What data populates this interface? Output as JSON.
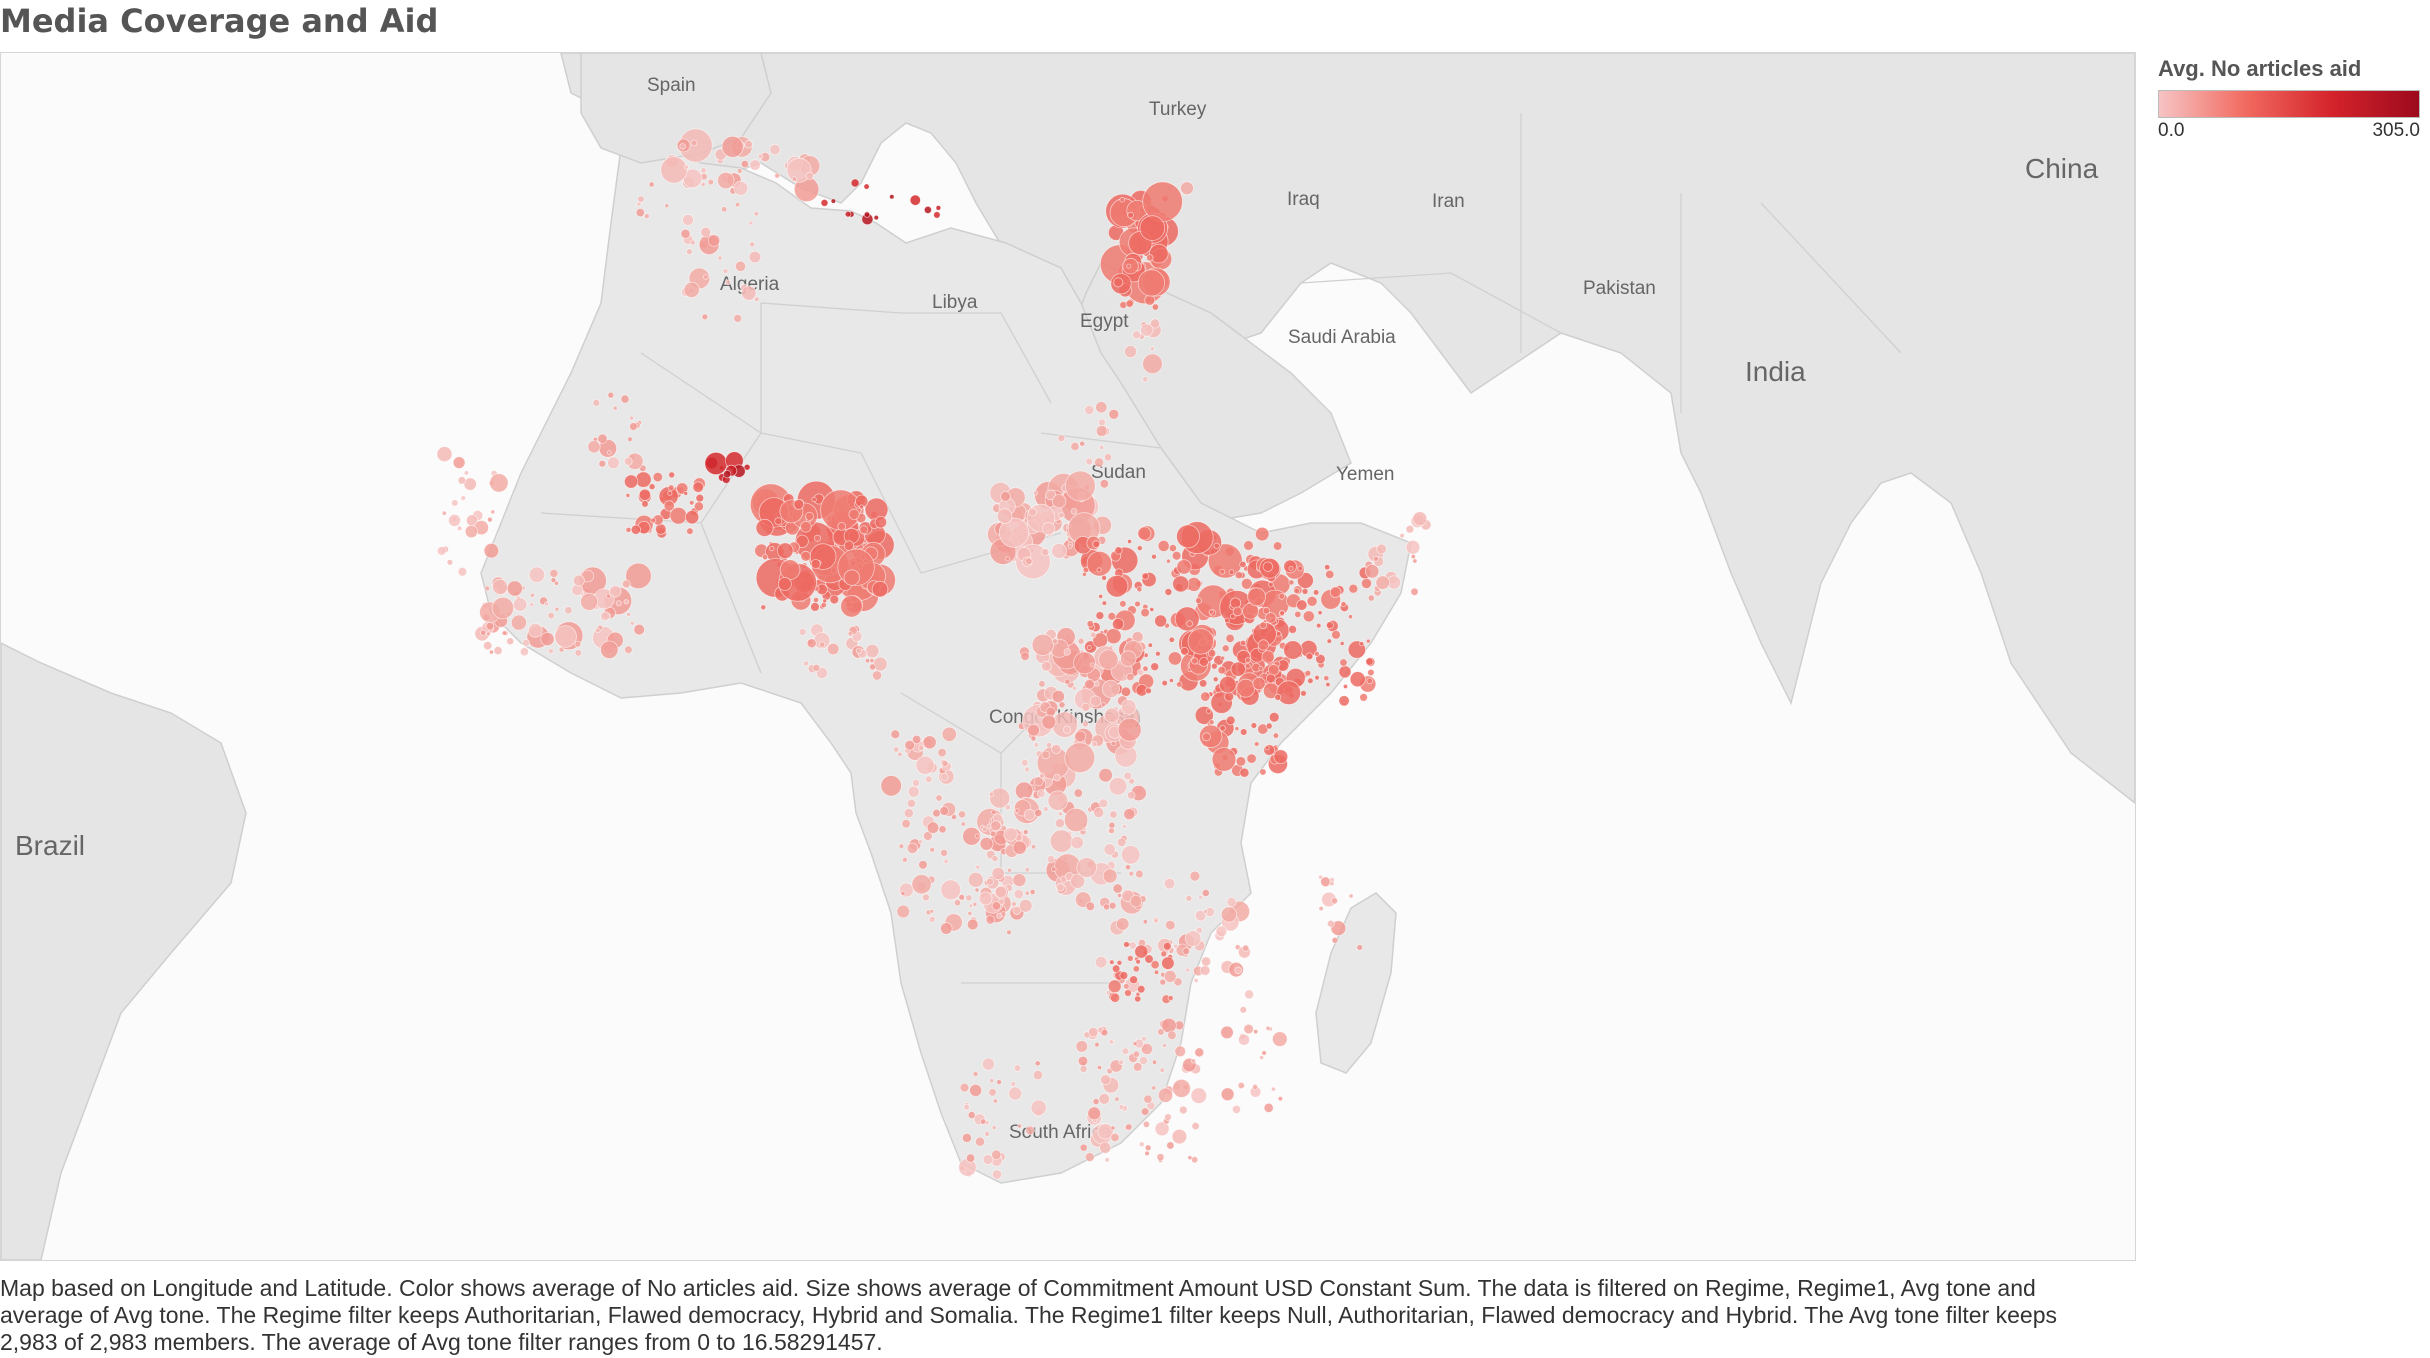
{
  "title": "Media Coverage and Aid",
  "legend": {
    "title": "Avg. No articles aid",
    "min": "0.0",
    "max": "305.0",
    "colors": [
      "#f6c4c4",
      "#f16a60",
      "#d4232b",
      "#9d0a1d"
    ]
  },
  "map": {
    "countries": {
      "spain": "Spain",
      "turkey": "Turkey",
      "iraq": "Iraq",
      "iran": "Iran",
      "china": "China",
      "algeria": "Algeria",
      "libya": "Libya",
      "egypt": "Egypt",
      "pakistan": "Pakistan",
      "saudi_arabia": "Saudi Arabia",
      "india": "India",
      "sudan": "Sudan",
      "yemen": "Yemen",
      "congo": "Congo (Kinshasa)",
      "brazil": "Brazil",
      "south_africa": "South Africa"
    }
  },
  "caption": "Map based on Longitude and Latitude.  Color shows average of No articles aid.  Size shows average of Commitment Amount USD Constant Sum. The data is filtered on Regime, Regime1, Avg tone and average of Avg tone. The Regime filter keeps Authoritarian, Flawed democracy, Hybrid and Somalia. The Regime1 filter keeps Null, Authoritarian, Flawed democracy and Hybrid. The Avg tone filter keeps 2,983 of 2,983 members. The average of Avg tone filter ranges from 0 to 16.58291457."
}
